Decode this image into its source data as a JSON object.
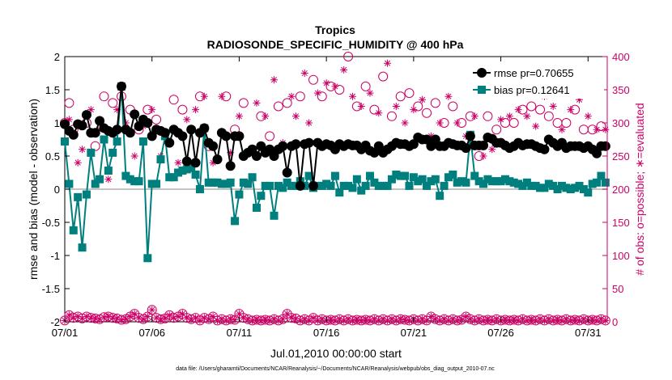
{
  "chart_data": {
    "type": "line",
    "title": "Tropics",
    "subtitle": "RADIOSONDE_SPECIFIC_HUMIDITY @ 400 hPa",
    "xlabel": "Jul.01,2010 00:00:00 start",
    "ylabel_left": "rmse and bias (model - observation)",
    "ylabel_right": "# of obs: o=possible; ∗=evaluated",
    "footnote": "data file: /Users/gharamti/Documents/NCAR/Reanalysis/~/Documents/NCAR/Reanalysis/webpub/obs_diag_output_2010-07.nc",
    "xlim": [
      1,
      32.1
    ],
    "x_tick_values": [
      1,
      6,
      11,
      16,
      21,
      26,
      31
    ],
    "x_tick_labels": [
      "07/01",
      "07/06",
      "07/11",
      "07/16",
      "07/21",
      "07/26",
      "07/31"
    ],
    "ylim_left": [
      -2,
      2
    ],
    "y_left_ticks": [
      "-2",
      "-1.5",
      "-1",
      "-0.5",
      "0",
      "0.5",
      "1",
      "1.5",
      "2"
    ],
    "ylim_right": [
      0,
      400
    ],
    "y_right_ticks": [
      "0",
      "50",
      "100",
      "150",
      "200",
      "250",
      "300",
      "350",
      "400"
    ],
    "legend_position": "top-right",
    "colors": {
      "rmse": "#000000",
      "bias": "#007f7f",
      "obs": "#cc0066",
      "zero_line": "#b0b0b0"
    },
    "series": [
      {
        "name": "rmse pr=0.70655",
        "axis": "left",
        "marker": "circle",
        "x": [
          1.0,
          1.25,
          1.5,
          1.75,
          2.0,
          2.25,
          2.5,
          2.75,
          3.0,
          3.25,
          3.5,
          3.75,
          4.0,
          4.25,
          4.5,
          4.75,
          5.0,
          5.25,
          5.5,
          5.75,
          6.0,
          6.25,
          6.5,
          6.75,
          7.0,
          7.25,
          7.5,
          7.75,
          8.0,
          8.25,
          8.5,
          8.75,
          9.0,
          9.25,
          9.5,
          9.75,
          10.0,
          10.25,
          10.5,
          10.75,
          11.0,
          11.25,
          11.5,
          11.75,
          12.0,
          12.25,
          12.5,
          12.75,
          13.0,
          13.25,
          13.5,
          13.75,
          14.0,
          14.25,
          14.5,
          14.75,
          15.0,
          15.25,
          15.5,
          15.75,
          16.0,
          16.25,
          16.5,
          16.75,
          17.0,
          17.25,
          17.5,
          17.75,
          18.0,
          18.25,
          18.5,
          18.75,
          19.0,
          19.25,
          19.5,
          19.75,
          20.0,
          20.25,
          20.5,
          20.75,
          21.0,
          21.25,
          21.5,
          21.75,
          22.0,
          22.25,
          22.5,
          22.75,
          23.0,
          23.25,
          23.5,
          23.75,
          24.0,
          24.25,
          24.5,
          24.75,
          25.0,
          25.25,
          25.5,
          25.75,
          26.0,
          26.25,
          26.5,
          26.75,
          27.0,
          27.25,
          27.5,
          27.75,
          28.0,
          28.25,
          28.5,
          28.75,
          29.0,
          29.25,
          29.5,
          29.75,
          30.0,
          30.25,
          30.5,
          30.75,
          31.0,
          31.25,
          31.5,
          31.75,
          32.0
        ],
        "values": [
          0.98,
          0.88,
          0.82,
          0.98,
          0.96,
          1.12,
          0.85,
          0.85,
          1.03,
          0.92,
          0.88,
          0.85,
          0.9,
          1.55,
          0.9,
          0.85,
          1.13,
          0.95,
          1.05,
          1.0,
          0.8,
          0.9,
          0.88,
          0.85,
          0.7,
          0.9,
          0.85,
          0.8,
          0.42,
          0.9,
          0.4,
          0.85,
          0.92,
          0.7,
          0.65,
          0.45,
          0.85,
          0.8,
          0.35,
          0.8,
          0.8,
          0.5,
          0.55,
          0.6,
          0.5,
          0.65,
          0.55,
          0.6,
          0.5,
          0.6,
          0.65,
          0.25,
          0.65,
          0.68,
          0.05,
          0.68,
          0.7,
          0.05,
          0.7,
          0.65,
          0.68,
          0.66,
          0.6,
          0.68,
          0.65,
          0.68,
          0.66,
          0.66,
          0.6,
          0.66,
          0.58,
          0.55,
          0.65,
          0.55,
          0.6,
          0.65,
          0.7,
          0.68,
          0.68,
          0.65,
          0.68,
          0.78,
          0.75,
          0.75,
          0.65,
          0.75,
          0.65,
          0.65,
          0.7,
          0.68,
          0.66,
          0.66,
          0.62,
          0.8,
          0.66,
          0.66,
          0.66,
          0.78,
          0.76,
          0.7,
          0.7,
          0.66,
          0.62,
          0.65,
          0.7,
          0.66,
          0.68,
          0.68,
          0.65,
          0.62,
          0.6,
          0.75,
          0.7,
          0.65,
          0.7,
          0.62,
          0.65,
          0.65,
          0.65,
          0.62,
          0.65,
          0.6,
          0.54,
          0.65,
          0.65
        ]
      },
      {
        "name": "bias pr=0.12641",
        "axis": "left",
        "marker": "square",
        "x": [
          1.0,
          1.25,
          1.5,
          1.75,
          2.0,
          2.25,
          2.5,
          2.75,
          3.0,
          3.25,
          3.5,
          3.75,
          4.0,
          4.25,
          4.5,
          4.75,
          5.0,
          5.25,
          5.5,
          5.75,
          6.0,
          6.25,
          6.5,
          6.75,
          7.0,
          7.25,
          7.5,
          7.75,
          8.0,
          8.25,
          8.5,
          8.75,
          9.0,
          9.25,
          9.5,
          9.75,
          10.0,
          10.25,
          10.5,
          10.75,
          11.0,
          11.25,
          11.5,
          11.75,
          12.0,
          12.25,
          12.5,
          12.75,
          13.0,
          13.25,
          13.5,
          13.75,
          14.0,
          14.25,
          14.5,
          14.75,
          15.0,
          15.25,
          15.5,
          15.75,
          16.0,
          16.25,
          16.5,
          16.75,
          17.0,
          17.25,
          17.5,
          17.75,
          18.0,
          18.25,
          18.5,
          18.75,
          19.0,
          19.25,
          19.5,
          19.75,
          20.0,
          20.25,
          20.5,
          20.75,
          21.0,
          21.25,
          21.5,
          21.75,
          22.0,
          22.25,
          22.5,
          22.75,
          23.0,
          23.25,
          23.5,
          23.75,
          24.0,
          24.25,
          24.5,
          24.75,
          25.0,
          25.25,
          25.5,
          25.75,
          26.0,
          26.25,
          26.5,
          26.75,
          27.0,
          27.25,
          27.5,
          27.75,
          28.0,
          28.25,
          28.5,
          28.75,
          29.0,
          29.25,
          29.5,
          29.75,
          30.0,
          30.25,
          30.5,
          30.75,
          31.0,
          31.25,
          31.5,
          31.75,
          32.0
        ],
        "values": [
          0.72,
          0.08,
          -0.62,
          -0.12,
          -0.88,
          -0.08,
          0.55,
          0.08,
          0.15,
          0.75,
          0.28,
          0.55,
          0.72,
          1.55,
          0.2,
          0.15,
          0.12,
          0.12,
          0.72,
          -1.04,
          0.08,
          0.08,
          0.45,
          0.8,
          0.18,
          0.18,
          0.25,
          0.28,
          0.3,
          0.32,
          0.22,
          0.0,
          0.92,
          0.1,
          0.1,
          0.1,
          0.08,
          0.08,
          0.1,
          -0.48,
          -0.08,
          0.1,
          0.08,
          0.18,
          -0.28,
          -0.1,
          0.05,
          0.05,
          -0.4,
          0.05,
          0.02,
          0.1,
          0.05,
          0.05,
          0.12,
          0.05,
          0.2,
          0.02,
          0.05,
          0.05,
          0.08,
          0.05,
          0.2,
          -0.05,
          0.05,
          0.05,
          0.02,
          0.15,
          -0.02,
          0.05,
          0.2,
          0.1,
          0.05,
          0.05,
          0.05,
          0.15,
          0.22,
          0.2,
          0.2,
          0.05,
          0.18,
          0.12,
          0.15,
          0.05,
          0.12,
          0.15,
          -0.1,
          0.05,
          0.18,
          0.22,
          0.1,
          0.12,
          0.1,
          0.82,
          0.2,
          0.12,
          0.08,
          0.15,
          0.12,
          0.12,
          0.12,
          0.15,
          0.12,
          0.1,
          0.08,
          0.05,
          0.1,
          0.05,
          0.05,
          0.02,
          0.02,
          0.08,
          0.05,
          0.0,
          0.05,
          0.02,
          0.0,
          0.02,
          0.05,
          0.0,
          -0.05,
          0.08,
          0.1,
          0.2,
          0.1
        ]
      },
      {
        "name": "obs possible (upper)",
        "axis": "right",
        "marker": "open-circle",
        "x": [
          1.0,
          1.25,
          1.5,
          2.25,
          2.75,
          3.25,
          3.75,
          4.25,
          4.75,
          5.25,
          5.75,
          6.25,
          7.25,
          7.75,
          8.75,
          9.25,
          10.25,
          10.75,
          11.25,
          12.25,
          12.75,
          13.25,
          13.75,
          14.5,
          15.25,
          15.75,
          16.25,
          16.75,
          17.25,
          17.75,
          18.25,
          18.75,
          19.25,
          19.75,
          20.25,
          20.75,
          21.25,
          21.75,
          22.25,
          22.75,
          23.25,
          23.75,
          24.25,
          24.75,
          25.25,
          25.75,
          26.25,
          26.75,
          27.25,
          27.75,
          28.25,
          28.75,
          29.25,
          29.75,
          30.25,
          30.75,
          31.25,
          31.75
        ],
        "values": [
          300,
          330,
          290,
          300,
          265,
          340,
          330,
          340,
          320,
          290,
          320,
          305,
          335,
          320,
          340,
          265,
          340,
          290,
          330,
          310,
          280,
          325,
          330,
          340,
          365,
          340,
          355,
          350,
          400,
          325,
          355,
          320,
          370,
          310,
          340,
          345,
          325,
          315,
          330,
          300,
          325,
          300,
          310,
          250,
          310,
          290,
          300,
          300,
          320,
          325,
          320,
          310,
          300,
          300,
          320,
          290,
          290,
          295
        ]
      },
      {
        "name": "obs evaluated (upper)",
        "axis": "right",
        "marker": "asterisk",
        "x": [
          1.25,
          1.75,
          2.0,
          2.5,
          3.0,
          3.5,
          4.0,
          4.5,
          5.0,
          5.5,
          6.0,
          6.5,
          7.0,
          7.5,
          8.0,
          8.5,
          9.0,
          9.5,
          10.0,
          10.5,
          11.0,
          11.5,
          12.0,
          12.5,
          13.0,
          13.5,
          14.0,
          14.25,
          14.75,
          15.0,
          15.5,
          16.0,
          16.5,
          17.0,
          17.5,
          18.0,
          18.5,
          19.0,
          19.5,
          20.0,
          20.5,
          21.0,
          21.5,
          22.0,
          22.5,
          23.0,
          23.5,
          24.0,
          24.5,
          25.0,
          25.5,
          26.0,
          26.5,
          27.0,
          27.5,
          28.0,
          28.5,
          29.0,
          29.5,
          30.0,
          30.5,
          31.0,
          31.5,
          32.0
        ],
        "values": [
          305,
          240,
          260,
          320,
          290,
          215,
          320,
          300,
          250,
          295,
          320,
          250,
          270,
          240,
          305,
          320,
          340,
          240,
          340,
          255,
          310,
          255,
          330,
          310,
          365,
          270,
          340,
          310,
          375,
          300,
          345,
          360,
          355,
          380,
          340,
          325,
          345,
          315,
          390,
          325,
          300,
          320,
          335,
          280,
          300,
          340,
          300,
          280,
          310,
          250,
          260,
          305,
          310,
          320,
          310,
          295,
          340,
          325,
          290,
          320,
          335,
          310,
          290,
          290
        ]
      },
      {
        "name": "obs possible (lower)",
        "axis": "right",
        "marker": "open-circle",
        "x": [
          1.0,
          1.25,
          1.5,
          1.75,
          2.0,
          2.25,
          2.5,
          2.75,
          3.0,
          3.25,
          3.5,
          3.75,
          4.0,
          4.25,
          4.5,
          4.75,
          5.0,
          5.25,
          5.5,
          5.75,
          6.0,
          6.25,
          6.5,
          6.75,
          7.0,
          7.25,
          7.5,
          7.75,
          8.0,
          8.25,
          8.5,
          8.75,
          9.0,
          9.25,
          9.5,
          9.75,
          10.0,
          10.25,
          10.5,
          10.75,
          11.0,
          11.25,
          11.5,
          11.75,
          12.0,
          12.25,
          12.5,
          12.75,
          13.0,
          13.25,
          13.5,
          13.75,
          14.0,
          14.25,
          14.5,
          14.75,
          15.0,
          15.25,
          15.5,
          15.75,
          16.0,
          16.25,
          16.5,
          16.75,
          17.0,
          17.25,
          17.5,
          17.75,
          18.0,
          18.25,
          18.5,
          18.75,
          19.0,
          19.25,
          19.5,
          19.75,
          20.0,
          20.25,
          20.5,
          20.75,
          21.0,
          21.25,
          21.5,
          21.75,
          22.0,
          22.25,
          22.5,
          22.75,
          23.0,
          23.25,
          23.5,
          23.75,
          24.0,
          24.25,
          24.5,
          24.75,
          25.0,
          25.25,
          25.5,
          25.75,
          26.0,
          26.25,
          26.5,
          26.75,
          27.0,
          27.25,
          27.5,
          27.75,
          28.0,
          28.25,
          28.5,
          28.75,
          29.0,
          29.25,
          29.5,
          29.75,
          30.0,
          30.25,
          30.5,
          30.75,
          31.0,
          31.25,
          31.5,
          31.75,
          32.0
        ],
        "values": [
          2,
          10,
          6,
          8,
          5,
          8,
          6,
          5,
          4,
          7,
          8,
          6,
          5,
          3,
          4,
          8,
          12,
          6,
          4,
          8,
          18,
          6,
          4,
          5,
          10,
          6,
          8,
          12,
          6,
          4,
          6,
          2,
          6,
          4,
          8,
          2,
          4,
          2,
          4,
          3,
          12,
          6,
          4,
          2,
          3,
          2,
          3,
          2,
          4,
          2,
          4,
          12,
          6,
          5,
          2,
          4,
          2,
          6,
          2,
          4,
          2,
          3,
          2,
          4,
          2,
          4,
          2,
          3,
          2,
          3,
          2,
          4,
          2,
          4,
          2,
          4,
          2,
          4,
          3,
          2,
          4,
          2,
          4,
          2,
          8,
          4,
          2,
          4,
          2,
          4,
          2,
          3,
          8,
          4,
          2,
          4,
          2,
          3,
          2,
          4,
          2,
          3,
          2,
          3,
          2,
          4,
          2,
          3,
          2,
          4,
          2,
          4,
          2,
          3,
          2,
          4,
          2,
          3,
          2,
          4,
          2,
          3,
          2,
          4,
          2
        ]
      }
    ]
  }
}
